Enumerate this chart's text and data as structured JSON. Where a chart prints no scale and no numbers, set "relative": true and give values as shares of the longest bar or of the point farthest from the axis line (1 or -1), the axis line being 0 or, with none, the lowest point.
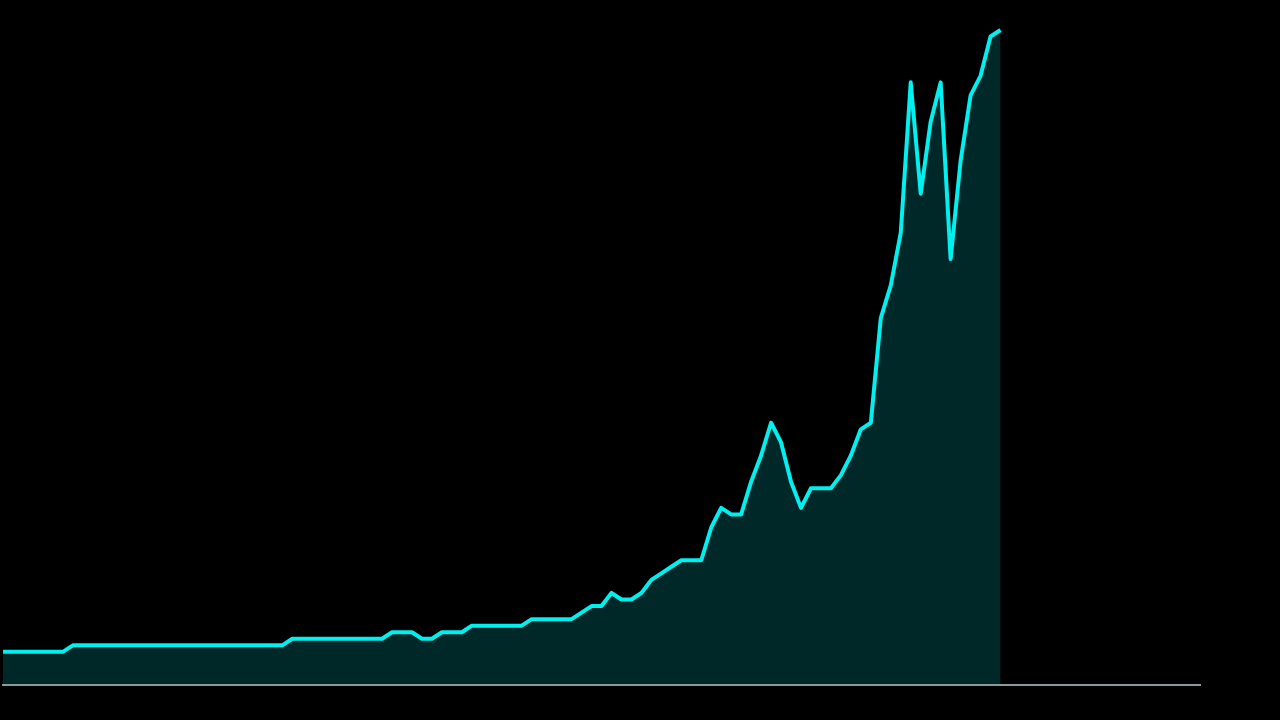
{
  "chart_data": {
    "type": "area",
    "relative": true,
    "legend": false,
    "categories": [
      null,
      null,
      null,
      null,
      null,
      null,
      null,
      null,
      null,
      null,
      null,
      null,
      null,
      null,
      null,
      null,
      null,
      null,
      null,
      null,
      null,
      null,
      null,
      null,
      null,
      null,
      null,
      null,
      null,
      null,
      null,
      null,
      null,
      null,
      null,
      null,
      null,
      null,
      null,
      null,
      null,
      null,
      null,
      null,
      null,
      null,
      null,
      null,
      null,
      null,
      null,
      null,
      null,
      null,
      null,
      null,
      null,
      null,
      null,
      null,
      null,
      null,
      null,
      null,
      null,
      null,
      null,
      null,
      null,
      null,
      null,
      null,
      null,
      null,
      null,
      null,
      null,
      null,
      null,
      null,
      null,
      null,
      null,
      null,
      null,
      null,
      null,
      null,
      null,
      null,
      null,
      null,
      null,
      null,
      null,
      null,
      null,
      null,
      null,
      null,
      null,
      null,
      null,
      null,
      null,
      null,
      null,
      null,
      null,
      null,
      null,
      null,
      null,
      null,
      null,
      null,
      null,
      null,
      null,
      null,
      null
    ],
    "series": [
      {
        "color": "#00f0f0",
        "values": [
          0.05,
          0.05,
          0.05,
          0.05,
          0.05,
          0.05,
          0.05,
          0.06,
          0.06,
          0.06,
          0.06,
          0.06,
          0.06,
          0.06,
          0.06,
          0.06,
          0.06,
          0.06,
          0.06,
          0.06,
          0.06,
          0.06,
          0.06,
          0.06,
          0.06,
          0.06,
          0.06,
          0.06,
          0.06,
          0.07,
          0.07,
          0.07,
          0.07,
          0.07,
          0.07,
          0.07,
          0.07,
          0.07,
          0.07,
          0.08,
          0.08,
          0.08,
          0.07,
          0.07,
          0.08,
          0.08,
          0.08,
          0.09,
          0.09,
          0.09,
          0.09,
          0.09,
          0.09,
          0.1,
          0.1,
          0.1,
          0.1,
          0.1,
          0.11,
          0.12,
          0.12,
          0.14,
          0.13,
          0.13,
          0.14,
          0.16,
          0.17,
          0.18,
          0.19,
          0.19,
          0.19,
          0.24,
          0.27,
          0.26,
          0.26,
          0.31,
          0.35,
          0.4,
          0.37,
          0.31,
          0.27,
          0.3,
          0.3,
          0.3,
          0.32,
          0.35,
          0.39,
          0.4,
          0.56,
          0.61,
          0.69,
          0.92,
          0.75,
          0.86,
          0.92,
          0.65,
          0.8,
          0.9,
          0.93,
          0.99,
          1,
          null,
          null,
          null,
          null,
          null,
          null,
          null,
          null,
          null,
          null,
          null,
          null,
          null,
          null,
          null,
          null,
          null,
          null,
          null,
          null
        ]
      }
    ]
  }
}
